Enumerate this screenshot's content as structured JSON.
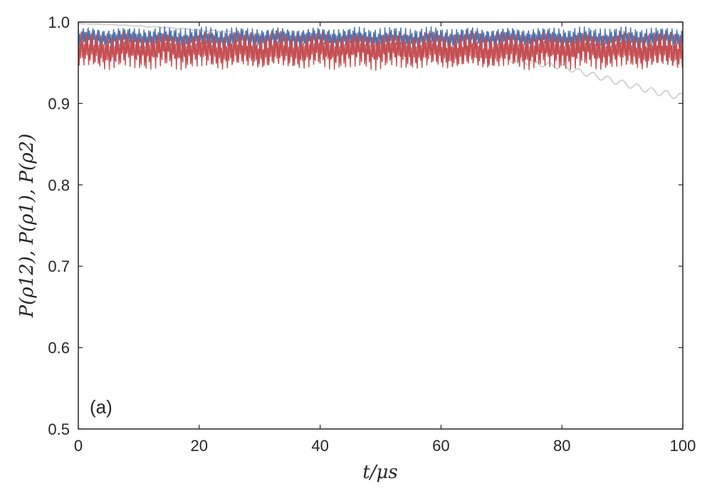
{
  "chart_data": {
    "type": "line",
    "panel_label": "(a)",
    "xlabel": "t/μs",
    "ylabel": "P(ρ12), P(ρ1), P(ρ2)",
    "xlim": [
      0,
      100
    ],
    "ylim": [
      0.5,
      1.0
    ],
    "x_ticks": [
      0,
      20,
      40,
      60,
      80,
      100
    ],
    "x_tick_labels": [
      "0",
      "20",
      "40",
      "60",
      "80",
      "100"
    ],
    "y_ticks": [
      0.5,
      0.6,
      0.7,
      0.8,
      0.9,
      1.0
    ],
    "y_tick_labels": [
      "0.5",
      "0.6",
      "0.7",
      "0.8",
      "0.9",
      "1.0"
    ],
    "grid": false,
    "legend": "none",
    "series": [
      {
        "color": "#d3d3d3",
        "x": [
          0,
          5,
          10,
          15,
          20,
          25,
          30,
          35,
          40,
          45,
          50,
          55,
          60,
          65,
          70,
          75,
          80,
          85,
          90,
          95,
          100
        ],
        "y": [
          0.998,
          0.997,
          0.995,
          0.993,
          0.99,
          0.988,
          0.985,
          0.982,
          0.979,
          0.976,
          0.972,
          0.968,
          0.965,
          0.96,
          0.955,
          0.95,
          0.945,
          0.935,
          0.925,
          0.915,
          0.908
        ],
        "band_low": [
          0.998,
          0.997,
          0.995,
          0.993,
          0.99,
          0.988,
          0.985,
          0.982,
          0.979,
          0.976,
          0.972,
          0.968,
          0.965,
          0.96,
          0.955,
          0.95,
          0.945,
          0.935,
          0.925,
          0.915,
          0.908
        ],
        "band_high": [
          0.998,
          0.997,
          0.995,
          0.993,
          0.99,
          0.988,
          0.985,
          0.982,
          0.979,
          0.976,
          0.972,
          0.968,
          0.965,
          0.96,
          0.955,
          0.95,
          0.945,
          0.935,
          0.925,
          0.915,
          0.908
        ]
      },
      {
        "color": "#4c72b0",
        "x": [
          0,
          5,
          10,
          15,
          20,
          25,
          30,
          35,
          40,
          45,
          50,
          55,
          60,
          65,
          70,
          75,
          80,
          85,
          90,
          95,
          100
        ],
        "y": [
          0.98,
          0.98,
          0.98,
          0.98,
          0.98,
          0.98,
          0.98,
          0.98,
          0.98,
          0.98,
          0.98,
          0.98,
          0.98,
          0.98,
          0.98,
          0.98,
          0.98,
          0.98,
          0.98,
          0.98,
          0.98
        ],
        "band_low": [
          0.965,
          0.965,
          0.965,
          0.965,
          0.965,
          0.965,
          0.965,
          0.965,
          0.965,
          0.965,
          0.965,
          0.965,
          0.965,
          0.965,
          0.965,
          0.965,
          0.965,
          0.965,
          0.965,
          0.965,
          0.965
        ],
        "band_high": [
          0.995,
          0.995,
          0.995,
          0.995,
          0.995,
          0.995,
          0.995,
          0.995,
          0.995,
          0.995,
          0.995,
          0.995,
          0.995,
          0.995,
          0.995,
          0.995,
          0.995,
          0.995,
          0.995,
          0.995,
          0.995
        ]
      },
      {
        "color": "#c44e52",
        "x": [
          0,
          5,
          10,
          15,
          20,
          25,
          30,
          35,
          40,
          45,
          50,
          55,
          60,
          65,
          70,
          75,
          80,
          85,
          90,
          95,
          100
        ],
        "y": [
          0.965,
          0.965,
          0.965,
          0.965,
          0.965,
          0.965,
          0.965,
          0.965,
          0.965,
          0.965,
          0.965,
          0.965,
          0.965,
          0.965,
          0.965,
          0.965,
          0.965,
          0.965,
          0.965,
          0.965,
          0.965
        ],
        "band_low": [
          0.94,
          0.94,
          0.94,
          0.94,
          0.94,
          0.94,
          0.94,
          0.94,
          0.94,
          0.94,
          0.94,
          0.94,
          0.94,
          0.94,
          0.94,
          0.94,
          0.94,
          0.94,
          0.94,
          0.94,
          0.94
        ],
        "band_high": [
          0.99,
          0.99,
          0.99,
          0.99,
          0.99,
          0.99,
          0.99,
          0.99,
          0.99,
          0.99,
          0.99,
          0.99,
          0.99,
          0.99,
          0.99,
          0.99,
          0.99,
          0.99,
          0.99,
          0.99,
          0.99
        ]
      }
    ]
  }
}
